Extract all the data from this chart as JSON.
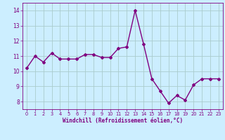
{
  "x": [
    0,
    1,
    2,
    3,
    4,
    5,
    6,
    7,
    8,
    9,
    10,
    11,
    12,
    13,
    14,
    15,
    16,
    17,
    18,
    19,
    20,
    21,
    22,
    23
  ],
  "y": [
    10.2,
    11.0,
    10.6,
    11.2,
    10.8,
    10.8,
    10.8,
    11.1,
    11.1,
    10.9,
    10.9,
    11.5,
    11.6,
    14.0,
    11.8,
    9.5,
    8.7,
    7.9,
    8.4,
    8.1,
    9.1,
    9.5,
    9.5,
    9.5
  ],
  "line_color": "#800080",
  "marker": "D",
  "marker_size": 2.0,
  "bg_color": "#cceeff",
  "grid_color": "#aacccc",
  "xlabel": "Windchill (Refroidissement éolien,°C)",
  "xlabel_color": "#800080",
  "tick_color": "#800080",
  "ylim": [
    7.5,
    14.5
  ],
  "yticks": [
    8,
    9,
    10,
    11,
    12,
    13,
    14
  ],
  "xticks": [
    0,
    1,
    2,
    3,
    4,
    5,
    6,
    7,
    8,
    9,
    10,
    11,
    12,
    13,
    14,
    15,
    16,
    17,
    18,
    19,
    20,
    21,
    22,
    23
  ],
  "linewidth": 1.0
}
